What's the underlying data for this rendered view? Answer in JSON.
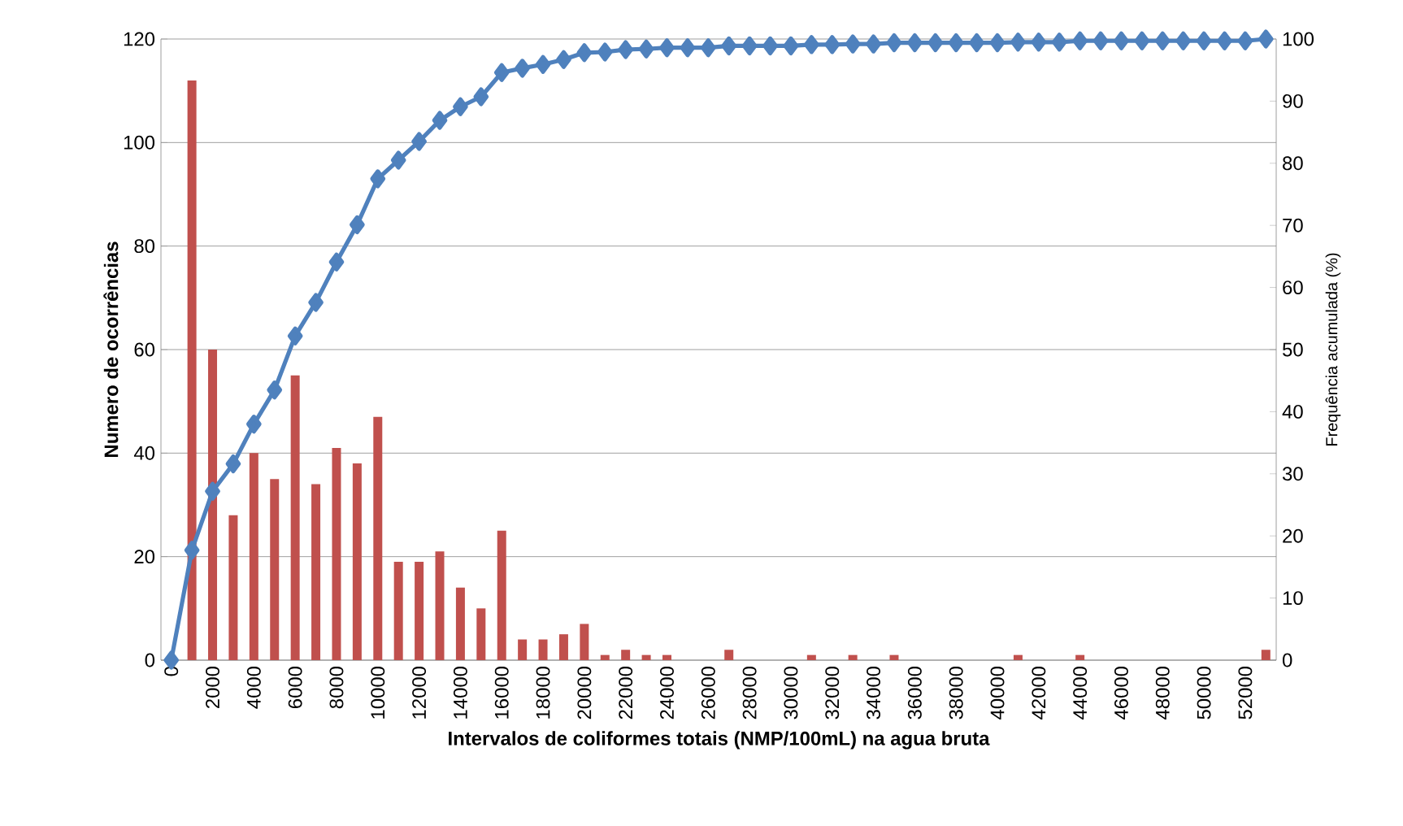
{
  "chart_data": {
    "type": "bar",
    "xlabel": "Intervalos de coliformes totais (NMP/100mL) na agua bruta",
    "ylabel": "Numero de ocorrências",
    "y2label": "Frequência acumulada (%)",
    "categories": [
      "0",
      null,
      "2000",
      null,
      "4000",
      null,
      "6000",
      null,
      "8000",
      null,
      "10000",
      null,
      "12000",
      null,
      "14000",
      null,
      "16000",
      null,
      "18000",
      null,
      "20000",
      null,
      "22000",
      null,
      "24000",
      null,
      "26000",
      null,
      "28000",
      null,
      "30000",
      null,
      "32000",
      null,
      "34000",
      null,
      "36000",
      null,
      "38000",
      null,
      "40000",
      null,
      "42000",
      null,
      "44000",
      null,
      "46000",
      null,
      "48000",
      null,
      "50000",
      null,
      "52000",
      null
    ],
    "ylim": [
      0,
      120
    ],
    "yticks": [
      0,
      20,
      40,
      60,
      80,
      100,
      120
    ],
    "y2lim": [
      0,
      100
    ],
    "y2ticks": [
      0,
      10,
      20,
      30,
      40,
      50,
      60,
      70,
      80,
      90,
      100
    ],
    "grid": "y",
    "series": [
      {
        "color": "#c0504d",
        "values": [
          0,
          112,
          60,
          28,
          40,
          35,
          55,
          34,
          41,
          38,
          47,
          19,
          19,
          21,
          14,
          10,
          25,
          4,
          4,
          5,
          7,
          1,
          2,
          1,
          1,
          0,
          0,
          2,
          0,
          0,
          0,
          1,
          0,
          1,
          0,
          1,
          0,
          0,
          0,
          0,
          0,
          1,
          0,
          0,
          1,
          0,
          0,
          0,
          0,
          0,
          0,
          0,
          0,
          2
        ]
      },
      {
        "type": "line",
        "axis": "y2",
        "color": "#4f81bd",
        "marker": "diamond",
        "line_style": "solid",
        "values": [
          0,
          17.7,
          27.2,
          31.6,
          38.0,
          43.5,
          52.2,
          57.6,
          64.1,
          70.1,
          77.5,
          80.5,
          83.5,
          86.9,
          89.1,
          90.7,
          94.6,
          95.3,
          95.9,
          96.7,
          97.8,
          97.9,
          98.3,
          98.4,
          98.6,
          98.6,
          98.6,
          98.9,
          98.9,
          98.9,
          98.9,
          99.1,
          99.1,
          99.2,
          99.2,
          99.4,
          99.4,
          99.4,
          99.4,
          99.4,
          99.4,
          99.5,
          99.5,
          99.5,
          99.7,
          99.7,
          99.7,
          99.7,
          99.7,
          99.7,
          99.7,
          99.7,
          99.7,
          100
        ]
      }
    ]
  }
}
